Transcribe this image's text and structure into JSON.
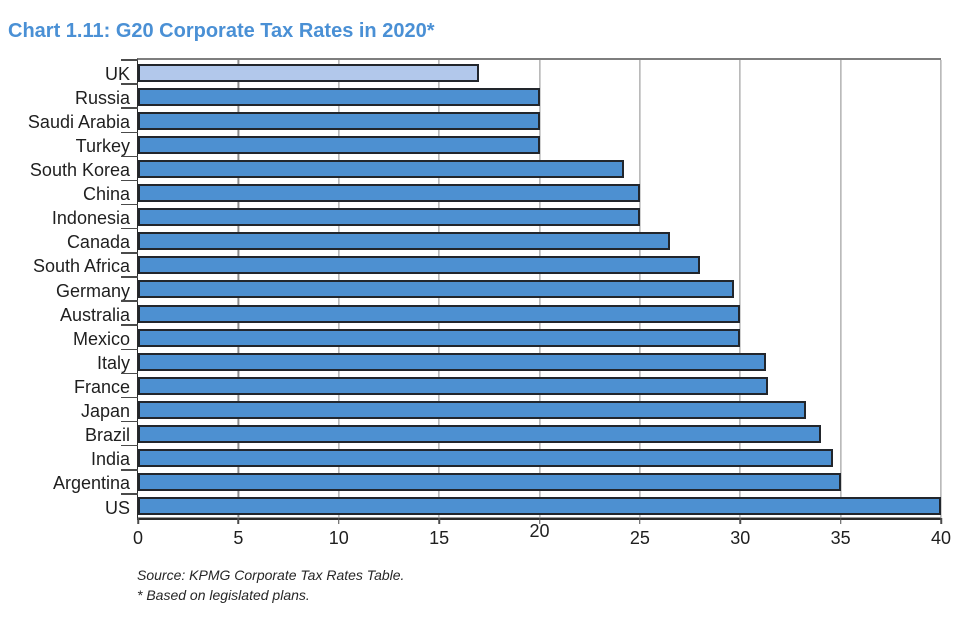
{
  "title": "Chart 1.11: G20 Corporate Tax Rates in 2020*",
  "title_color": "#4A90D5",
  "chart_data": {
    "type": "bar",
    "orientation": "horizontal",
    "title": "Chart 1.11: G20 Corporate Tax Rates in 2020*",
    "xlabel": "",
    "ylabel": "",
    "xlim": [
      0,
      40
    ],
    "x_ticks": [
      0,
      5,
      10,
      15,
      20,
      25,
      30,
      35,
      40
    ],
    "raised_tick_label": "20",
    "grid": "vertical gridlines every 5 units",
    "legend": "none",
    "categories": [
      "UK",
      "Russia",
      "Saudi Arabia",
      "Turkey",
      "South Korea",
      "China",
      "Indonesia",
      "Canada",
      "South Africa",
      "Germany",
      "Australia",
      "Mexico",
      "Italy",
      "France",
      "Japan",
      "Brazil",
      "India",
      "Argentina",
      "US"
    ],
    "values": [
      17,
      20,
      20,
      20,
      24.2,
      25,
      25,
      26.5,
      28,
      29.7,
      30,
      30,
      31.3,
      31.4,
      33.3,
      34,
      34.6,
      35,
      40
    ],
    "highlight_category": "UK",
    "colors": {
      "bar_fill": "#4D90D1",
      "highlight_fill": "#B2C8EB",
      "bar_border": "#22262c",
      "gridline": "#8C8C8C",
      "axis": "#2b2b2b"
    }
  },
  "footnotes": {
    "source": "Source: KPMG Corporate Tax Rates Table.",
    "note": "* Based on legislated plans."
  }
}
